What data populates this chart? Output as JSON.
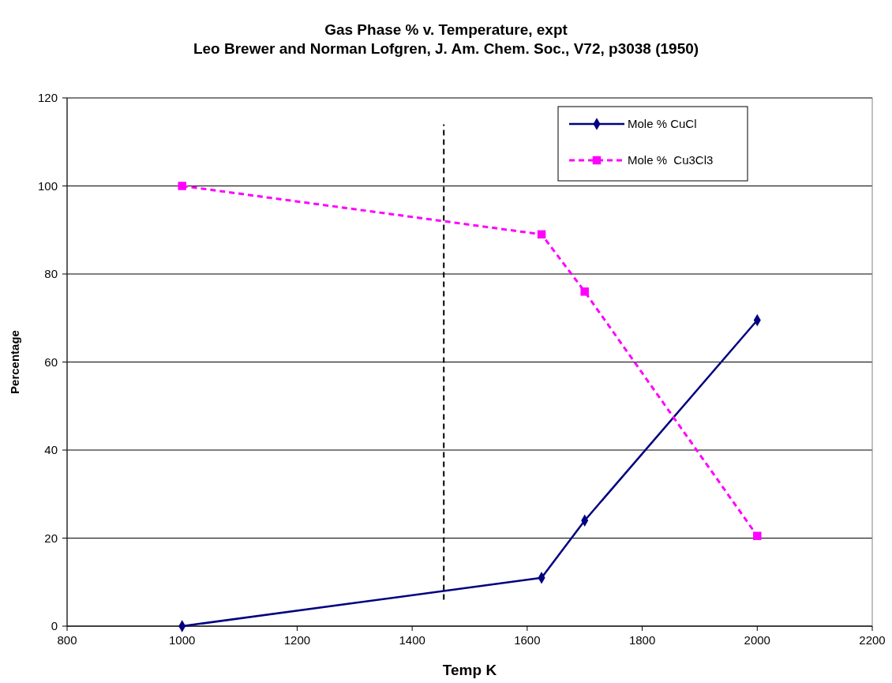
{
  "chart_data": {
    "type": "line",
    "title": "Gas Phase % v. Temperature, expt",
    "subtitle": "Leo Brewer and Norman Lofgren, J. Am. Chem. Soc., V72, p3038 (1950)",
    "xlabel": "Temp K",
    "ylabel": "Percentage",
    "x": [
      1000,
      1625,
      1700,
      2000
    ],
    "series": [
      {
        "name": "Mole % CuCl",
        "color": "#000080",
        "values": [
          0,
          11,
          24,
          69.5
        ],
        "marker": "diamond",
        "line_style": "solid"
      },
      {
        "name": "Mole %  Cu3Cl3",
        "color": "#ff00ff",
        "values": [
          100,
          89,
          76,
          20.5
        ],
        "marker": "square",
        "line_style": "dashed"
      }
    ],
    "xlim": [
      800,
      2200
    ],
    "xticks": [
      800,
      1000,
      1200,
      1400,
      1600,
      1800,
      2000,
      2200
    ],
    "ylim": [
      0,
      120
    ],
    "yticks": [
      0,
      20,
      40,
      60,
      80,
      100,
      120
    ],
    "grid": "y",
    "legend": "top right",
    "ref_lines": [
      {
        "axis": "x",
        "value": 1455,
        "color": "#000000",
        "line_style": "dashed"
      }
    ]
  }
}
